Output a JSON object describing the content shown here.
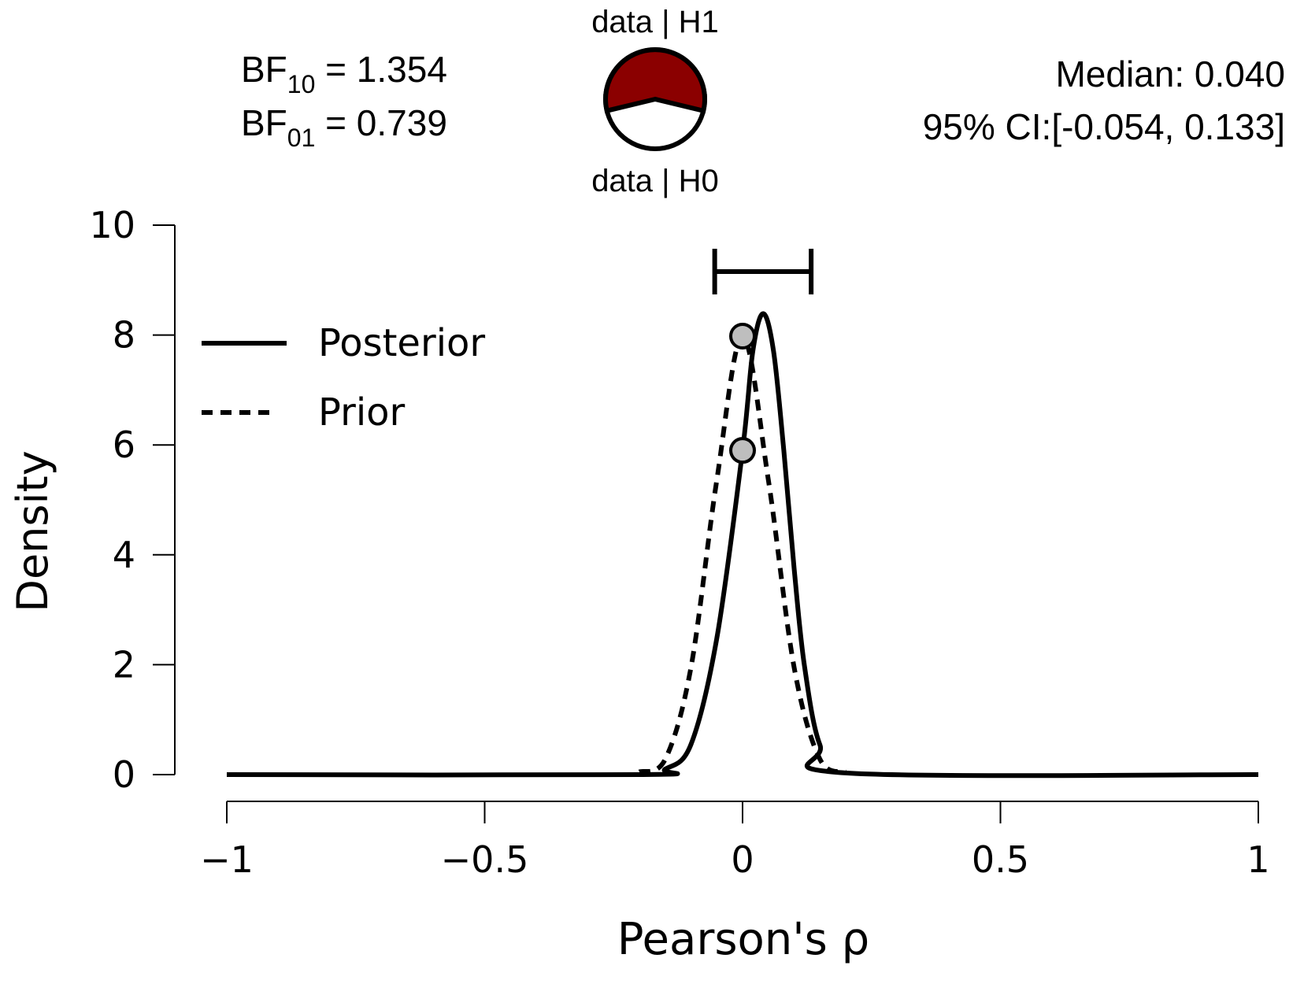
{
  "header": {
    "bf10_prefix": "BF",
    "bf10_sub": "10",
    "bf10_value": " = 1.354",
    "bf01_prefix": "BF",
    "bf01_sub": "01",
    "bf01_value": " = 0.739",
    "pie_top_label": "data | H1",
    "pie_bottom_label": "data | H0",
    "median": "Median: 0.040",
    "ci": "95% CI:[-0.054, 0.133]"
  },
  "colors": {
    "h1": "#8b0000",
    "h0": "#ffffff",
    "point_fill": "#bebebe",
    "line": "#000000"
  },
  "chart_data": {
    "type": "line",
    "xlabel": "Pearson's ρ",
    "ylabel": "Density",
    "xlim": [
      -1,
      1
    ],
    "ylim": [
      0,
      10
    ],
    "x_ticks": [
      -1,
      -0.5,
      0,
      0.5,
      1
    ],
    "x_tick_labels": [
      "−1",
      "−0.5",
      "0",
      "0.5",
      "1"
    ],
    "y_ticks": [
      0,
      2,
      4,
      6,
      8,
      10
    ],
    "y_tick_labels": [
      "0",
      "2",
      "4",
      "6",
      "8",
      "10"
    ],
    "grid": false,
    "legend_position": "top-left",
    "series": [
      {
        "name": "Posterior",
        "style": "solid",
        "x": [
          -1.0,
          -0.2,
          -0.15,
          -0.1,
          -0.05,
          0.0,
          0.02,
          0.04,
          0.06,
          0.08,
          0.1,
          0.12,
          0.15,
          0.2,
          1.0
        ],
        "y": [
          0.0,
          0.0,
          0.1,
          0.55,
          2.48,
          5.9,
          7.71,
          8.39,
          7.71,
          5.9,
          3.75,
          1.98,
          0.54,
          0.03,
          0.0
        ]
      },
      {
        "name": "Prior",
        "style": "dashed",
        "x": [
          -0.2,
          -0.15,
          -0.1,
          -0.05,
          0.0,
          0.05,
          0.1,
          0.15,
          0.2
        ],
        "y": [
          0.05,
          0.28,
          1.95,
          5.36,
          7.98,
          5.36,
          1.95,
          0.28,
          0.05
        ]
      }
    ],
    "points": [
      {
        "label": "prior at 0",
        "x": 0,
        "y": 7.98
      },
      {
        "label": "posterior at 0",
        "x": 0,
        "y": 5.9
      }
    ],
    "credible_interval": {
      "lower": -0.054,
      "upper": 0.133
    },
    "median": 0.04,
    "pie": {
      "h1_proportion": 0.575,
      "h0_proportion": 0.425
    }
  }
}
